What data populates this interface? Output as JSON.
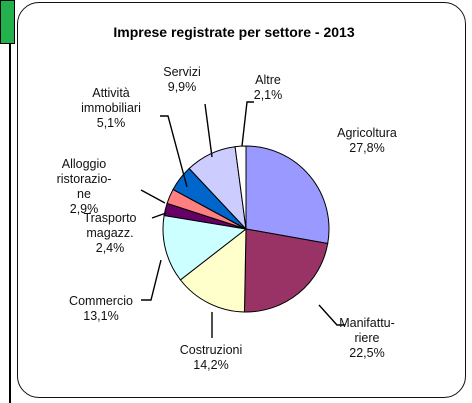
{
  "chart_data": {
    "type": "pie",
    "title": "Imprese registrate per settore - 2013",
    "slices": [
      {
        "label": [
          "Agricoltura"
        ],
        "pct": "27,8%",
        "value": 27.8,
        "color": "#9999ff"
      },
      {
        "label": [
          "Manifattu-",
          "riere"
        ],
        "pct": "22,5%",
        "value": 22.5,
        "color": "#993366"
      },
      {
        "label": [
          "Costruzioni"
        ],
        "pct": "14,2%",
        "value": 14.2,
        "color": "#ffffcc"
      },
      {
        "label": [
          "Commercio"
        ],
        "pct": "13,1%",
        "value": 13.1,
        "color": "#ccffff"
      },
      {
        "label": [
          "Trasporto",
          "magazz."
        ],
        "pct": "2,4%",
        "value": 2.4,
        "color": "#660066"
      },
      {
        "label": [
          "Alloggio",
          "ristorazio-",
          "ne"
        ],
        "pct": "2,9%",
        "value": 2.9,
        "color": "#ff8080"
      },
      {
        "label": [
          "Attività",
          "immobiliari"
        ],
        "pct": "5,1%",
        "value": 5.1,
        "color": "#0066cc"
      },
      {
        "label": [
          "Servizi"
        ],
        "pct": "9,9%",
        "value": 9.9,
        "color": "#ccccff"
      },
      {
        "label": [
          "Altre"
        ],
        "pct": "2,1%",
        "value": 2.1,
        "color": "#ffffff"
      }
    ]
  }
}
